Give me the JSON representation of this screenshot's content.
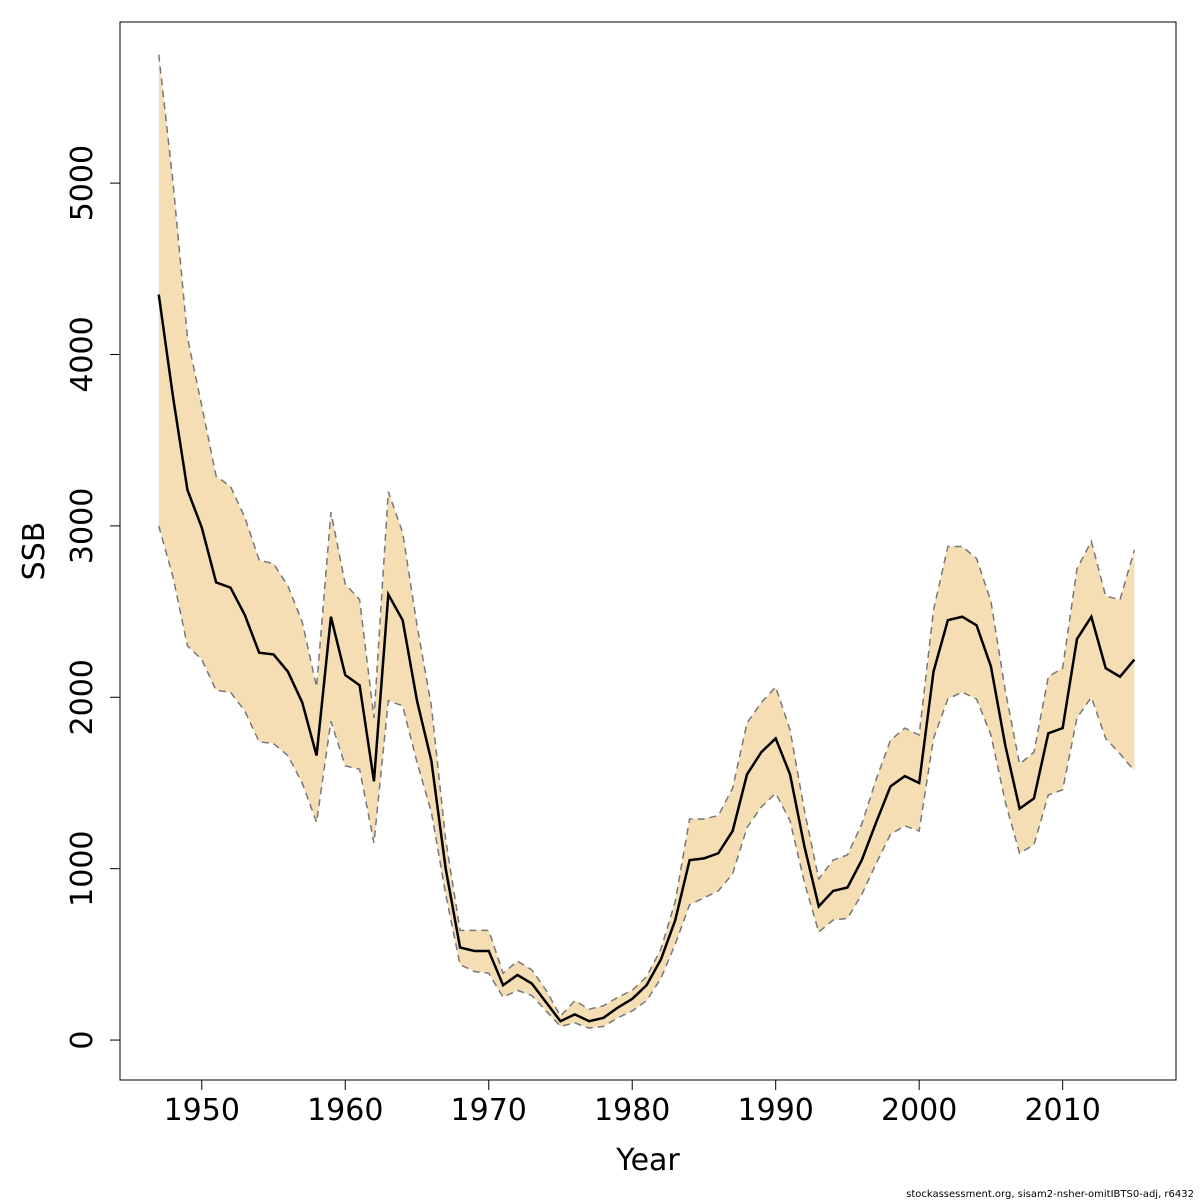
{
  "chart_data": {
    "type": "line",
    "x_label": "Year",
    "y_label": "SSB",
    "caption": "stockassessment.org, sisam2-nsher-omitIBTS0-adj, r6432",
    "x": [
      1947,
      1948,
      1949,
      1950,
      1951,
      1952,
      1953,
      1954,
      1955,
      1956,
      1957,
      1958,
      1959,
      1960,
      1961,
      1962,
      1963,
      1964,
      1965,
      1966,
      1967,
      1968,
      1969,
      1970,
      1971,
      1972,
      1973,
      1974,
      1975,
      1976,
      1977,
      1978,
      1979,
      1980,
      1981,
      1982,
      1983,
      1984,
      1985,
      1986,
      1987,
      1988,
      1989,
      1990,
      1991,
      1992,
      1993,
      1994,
      1995,
      1996,
      1997,
      1998,
      1999,
      2000,
      2001,
      2002,
      2003,
      2004,
      2005,
      2006,
      2007,
      2008,
      2009,
      2010,
      2011,
      2012,
      2013,
      2014,
      2015
    ],
    "series": [
      {
        "color": "#000000",
        "values": [
          4350,
          3750,
          3210,
          2990,
          2670,
          2640,
          2480,
          2260,
          2250,
          2150,
          1970,
          1660,
          2470,
          2130,
          2070,
          1510,
          2600,
          2450,
          1980,
          1630,
          1000,
          540,
          520,
          520,
          320,
          380,
          330,
          220,
          110,
          150,
          110,
          130,
          190,
          240,
          320,
          470,
          700,
          1050,
          1060,
          1090,
          1220,
          1550,
          1680,
          1760,
          1550,
          1130,
          780,
          870,
          890,
          1050,
          1270,
          1480,
          1540,
          1500,
          2150,
          2450,
          2470,
          2420,
          2180,
          1720,
          1350,
          1410,
          1790,
          1820,
          2340,
          2470,
          2170,
          2120,
          2220
        ]
      },
      {
        "color": "#f5deb3",
        "values": [
          3000,
          2700,
          2300,
          2220,
          2040,
          2030,
          1920,
          1740,
          1730,
          1660,
          1500,
          1270,
          1860,
          1600,
          1580,
          1150,
          1980,
          1950,
          1620,
          1330,
          850,
          440,
          400,
          390,
          250,
          290,
          260,
          170,
          80,
          100,
          70,
          80,
          130,
          170,
          230,
          360,
          560,
          790,
          830,
          870,
          970,
          1240,
          1360,
          1440,
          1280,
          920,
          630,
          700,
          710,
          850,
          1030,
          1200,
          1250,
          1220,
          1760,
          1990,
          2030,
          1990,
          1780,
          1390,
          1090,
          1140,
          1430,
          1460,
          1880,
          2000,
          1760,
          1670,
          1570
        ]
      },
      {
        "color": "#f5deb3",
        "values": [
          5750,
          5000,
          4100,
          3700,
          3290,
          3230,
          3050,
          2800,
          2780,
          2650,
          2440,
          2060,
          3080,
          2660,
          2570,
          1880,
          3200,
          2960,
          2420,
          1950,
          1170,
          640,
          640,
          640,
          390,
          460,
          410,
          290,
          140,
          230,
          180,
          200,
          250,
          290,
          370,
          530,
          810,
          1290,
          1290,
          1310,
          1470,
          1850,
          1970,
          2060,
          1810,
          1340,
          940,
          1050,
          1080,
          1260,
          1520,
          1750,
          1820,
          1780,
          2510,
          2880,
          2880,
          2810,
          2560,
          2040,
          1610,
          1680,
          2120,
          2170,
          2750,
          2910,
          2590,
          2570,
          2860
        ]
      }
    ],
    "xlim": [
      1944.3,
      2017.9
    ],
    "ylim": [
      -233,
      5940
    ],
    "xticks": [
      1950,
      1960,
      1970,
      1980,
      1990,
      2000,
      2010
    ],
    "yticks": [
      0,
      1000,
      2000,
      3000,
      4000,
      5000
    ]
  }
}
